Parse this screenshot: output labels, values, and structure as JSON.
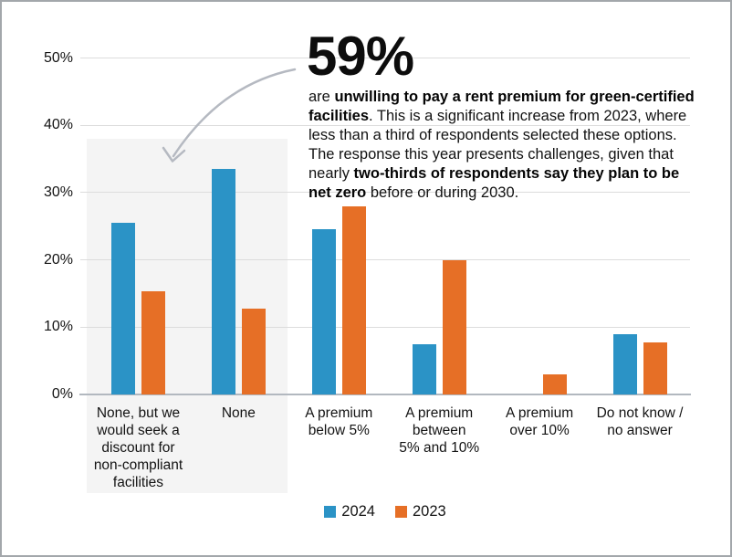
{
  "annotation": {
    "headline": "59%",
    "paragraph": [
      {
        "text": "are ",
        "bold": false
      },
      {
        "text": "unwilling to pay a rent premium for green-certified facilities",
        "bold": true
      },
      {
        "text": ". This is a significant increase from 2023, where less than a third of respondents selected these options. The response this year presents challenges, given that nearly ",
        "bold": false
      },
      {
        "text": "two-thirds of respondents say they plan to be net zero",
        "bold": true
      },
      {
        "text": " before or during 2030.",
        "bold": false
      }
    ]
  },
  "chart_data": {
    "type": "bar",
    "categories": [
      "None, but we\nwould seek a\ndiscount for\nnon-compliant\nfacilities",
      "None",
      "A premium\nbelow 5%",
      "A premium\nbetween\n5% and 10%",
      "A premium\nover 10%",
      "Do not know /\nno answer"
    ],
    "series": [
      {
        "name": "2024",
        "color": "#2B93C6",
        "values": [
          25.5,
          33.5,
          24.5,
          7.5,
          0,
          9
        ]
      },
      {
        "name": "2023",
        "color": "#E66F26",
        "values": [
          15.3,
          12.8,
          28,
          20,
          3,
          7.8
        ]
      }
    ],
    "title": "",
    "xlabel": "",
    "ylabel": "",
    "ylim": [
      0,
      50
    ],
    "yticks": [
      0,
      10,
      20,
      30,
      40,
      50
    ],
    "ytick_labels": [
      "0%",
      "10%",
      "20%",
      "30%",
      "40%",
      "50%"
    ],
    "grid": "horizontal",
    "legend_position": "bottom-center",
    "highlight_region": {
      "covers_categories": [
        "None, but we would seek a discount for non-compliant facilities",
        "None"
      ],
      "color": "#F4F4F4",
      "note": "shaded band behind first two categories, sum of 2024 bars = 59%"
    },
    "colors": {
      "gridline": "#DCDCDC",
      "axis_line": "#B2B8BF",
      "arrow": "#B5B9C1",
      "text": "#111111"
    }
  }
}
